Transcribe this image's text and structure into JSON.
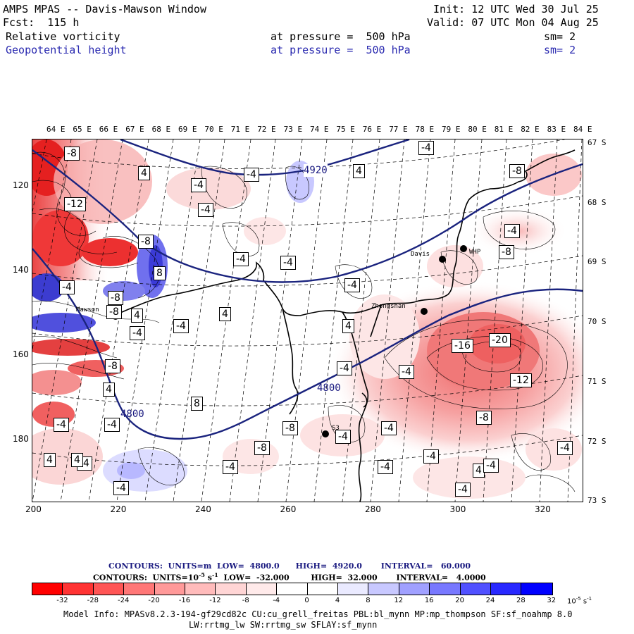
{
  "header": {
    "title": "AMPS MPAS -- Davis-Mawson Window",
    "init": "Init: 12 UTC Wed 30 Jul 25",
    "fcst": "Fcst:  115 h",
    "valid": "Valid: 07 UTC Mon 04 Aug 25",
    "field1_name": "Relative vorticity",
    "field1_level": "at pressure =  500 hPa",
    "field1_sm": "sm= 2",
    "field2_name": "Geopotential height",
    "field2_level": "at pressure =  500 hPa",
    "field2_sm": "sm= 2"
  },
  "axes": {
    "lon_labels": [
      "64 E",
      "65 E",
      "66 E",
      "67 E",
      "68 E",
      "69 E",
      "70 E",
      "71 E",
      "72 E",
      "73 E",
      "74 E",
      "75 E",
      "76 E",
      "77 E",
      "78 E",
      "79 E",
      "80 E",
      "81 E",
      "82 E",
      "83 E",
      "84 E"
    ],
    "lat_labels": [
      "67 S",
      "68 S",
      "69 S",
      "70 S",
      "71 S",
      "72 S",
      "73 S"
    ],
    "x_ticks": [
      "200",
      "220",
      "240",
      "260",
      "280",
      "300",
      "320"
    ],
    "y_ticks": [
      "120",
      "140",
      "160",
      "180"
    ]
  },
  "map": {
    "stations": [
      {
        "name": "Mawson",
        "label": "Mawson"
      },
      {
        "name": "Davis",
        "label": "Davis"
      },
      {
        "name": "WHP",
        "label": "WHP"
      },
      {
        "name": "Zhongshan",
        "label": "Zhongshan"
      },
      {
        "name": "S3",
        "label": "S3"
      }
    ],
    "height_contour_labels": [
      "4920",
      "4800",
      "4800"
    ],
    "vorticity_boxes": [
      "-8",
      "4",
      "-4",
      "-12",
      "-4",
      "-8",
      "8",
      "-4",
      "-4",
      "-8",
      "4",
      "4",
      "-4",
      "-4",
      "4",
      "-4",
      "-8",
      "-4",
      "4",
      "4",
      "-4",
      "-4",
      "-4",
      "4",
      "4",
      "-4",
      "-8",
      "-4",
      "-4",
      "-4",
      "-4",
      "4",
      "-4",
      "-4",
      "-4",
      "-8",
      "-4",
      "-8",
      "-16",
      "-20",
      "-12",
      "-8",
      "-4",
      "-4",
      "-4",
      "-8",
      "8",
      "-8",
      "-4",
      "-4"
    ],
    "colors": {
      "height_contour": "#1a237e",
      "coast": "#000000",
      "station": "#000000"
    }
  },
  "contours_info": {
    "line1": "CONTOURS:  UNITS=m  LOW=  4800.0      HIGH=  4920.0       INTERVAL=   60.000",
    "line2_prefix": "CONTOURS:  UNITS=10",
    "line2_exp": "-5",
    "line2_s": " s",
    "line2_sexp": "-1",
    "line2_rest": "  LOW=  -32.000        HIGH=  32.000       INTERVAL=   4.0000"
  },
  "colorbar": {
    "ticks": [
      "-32",
      "-28",
      "-24",
      "-20",
      "-16",
      "-12",
      "-8",
      "-4",
      "0",
      "4",
      "8",
      "12",
      "16",
      "20",
      "24",
      "28",
      "32"
    ],
    "units": "10",
    "units_exp": "-5",
    "units_s": " s",
    "units_sexp": "-1",
    "colors": [
      "#ff0000",
      "#ff3333",
      "#ff5555",
      "#ff7777",
      "#ff9999",
      "#ffbbbb",
      "#ffd5d5",
      "#ffeaea",
      "#ffffff",
      "#ffffff",
      "#eaeaff",
      "#c8c8ff",
      "#a0a0ff",
      "#7878ff",
      "#5050ff",
      "#2828ff",
      "#0000ff"
    ]
  },
  "footer": {
    "model_info": "Model Info: MPASv8.2.3-194-gf29cd82c CU:cu_grell_freitas PBL:bl_mynn MP:mp_thompson SF:sf_noahmp 8.0",
    "model_info2": "LW:rrtmg_lw SW:rrtmg_sw SFLAY:sf_mynn"
  }
}
